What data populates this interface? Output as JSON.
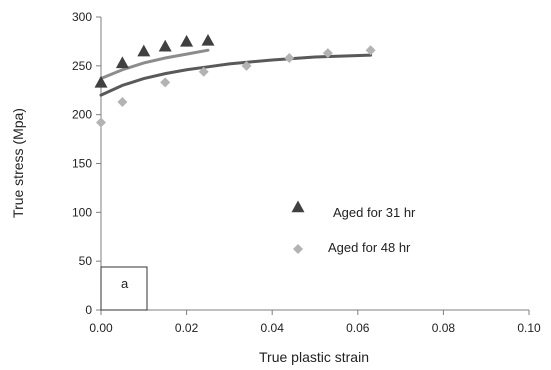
{
  "chart_data": {
    "type": "scatter",
    "xlabel": "True plastic strain",
    "ylabel": "True stress (Mpa)",
    "xlim": [
      0,
      0.1
    ],
    "ylim": [
      0,
      300
    ],
    "x_ticks": [
      "0.00",
      "0.02",
      "0.04",
      "0.06",
      "0.08",
      "0.10"
    ],
    "y_ticks": [
      "0",
      "50",
      "100",
      "150",
      "200",
      "250",
      "300"
    ],
    "grid": false,
    "legend_position": "center-right",
    "panel_label": "a",
    "series": [
      {
        "name": "Aged for 31 hr",
        "marker": "triangle",
        "color": "#404040",
        "points": [
          {
            "x": 0.0,
            "y": 233
          },
          {
            "x": 0.005,
            "y": 253
          },
          {
            "x": 0.01,
            "y": 265
          },
          {
            "x": 0.015,
            "y": 270
          },
          {
            "x": 0.02,
            "y": 275
          },
          {
            "x": 0.025,
            "y": 276
          }
        ],
        "fit": {
          "color": "#8c8c8c",
          "points": [
            {
              "x": 0.0,
              "y": 237
            },
            {
              "x": 0.005,
              "y": 246
            },
            {
              "x": 0.01,
              "y": 253
            },
            {
              "x": 0.015,
              "y": 258
            },
            {
              "x": 0.02,
              "y": 262
            },
            {
              "x": 0.025,
              "y": 266
            }
          ]
        }
      },
      {
        "name": "Aged for 48 hr",
        "marker": "diamond",
        "color": "#b3b3b3",
        "points": [
          {
            "x": 0.0,
            "y": 192
          },
          {
            "x": 0.005,
            "y": 213
          },
          {
            "x": 0.015,
            "y": 233
          },
          {
            "x": 0.024,
            "y": 244
          },
          {
            "x": 0.034,
            "y": 250
          },
          {
            "x": 0.044,
            "y": 258
          },
          {
            "x": 0.053,
            "y": 263
          },
          {
            "x": 0.063,
            "y": 266
          }
        ],
        "fit": {
          "color": "#595959",
          "points": [
            {
              "x": 0.0,
              "y": 220
            },
            {
              "x": 0.005,
              "y": 230
            },
            {
              "x": 0.01,
              "y": 237
            },
            {
              "x": 0.015,
              "y": 242
            },
            {
              "x": 0.02,
              "y": 246
            },
            {
              "x": 0.025,
              "y": 249
            },
            {
              "x": 0.03,
              "y": 252
            },
            {
              "x": 0.04,
              "y": 256
            },
            {
              "x": 0.05,
              "y": 259
            },
            {
              "x": 0.063,
              "y": 261
            }
          ]
        }
      }
    ]
  }
}
